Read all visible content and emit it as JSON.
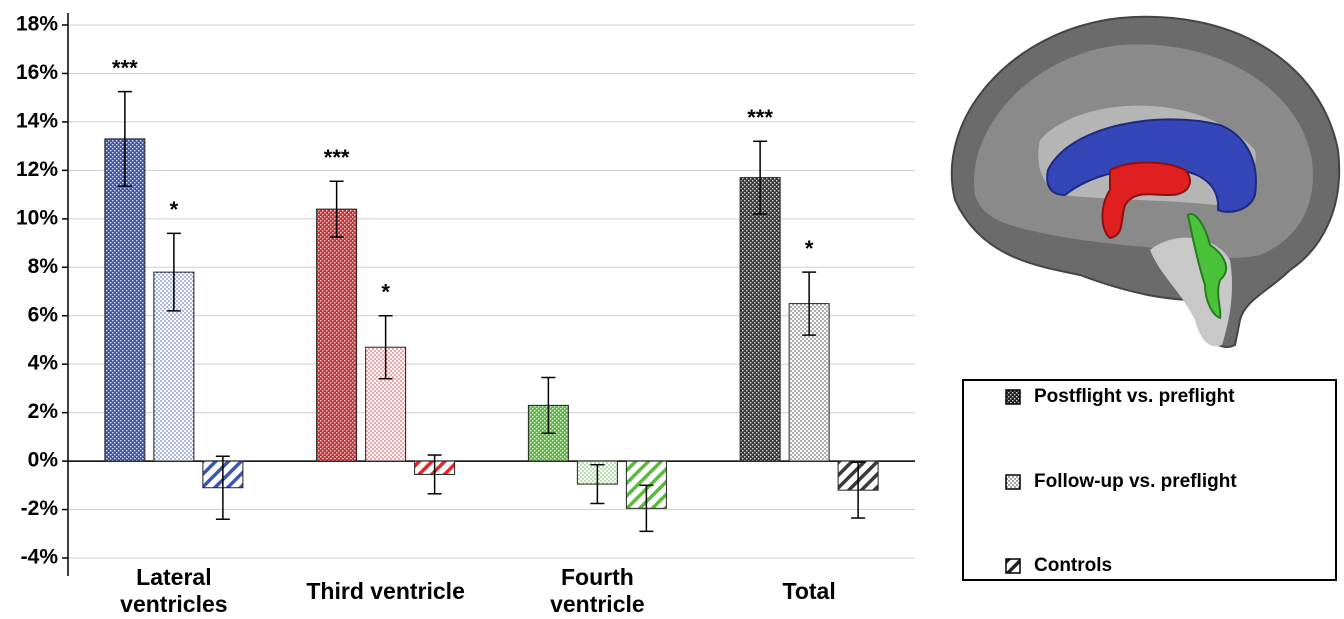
{
  "chart_data": {
    "type": "bar",
    "categories": [
      "Lateral ventricles",
      "Third ventricle",
      "Fourth ventricle",
      "Total"
    ],
    "category_colors": [
      "#3b56b3",
      "#e3262a",
      "#5bbb3b",
      "#3a3a3a"
    ],
    "series": [
      {
        "name": "Postflight vs. preflight",
        "pattern": "dense",
        "values": [
          13.3,
          10.4,
          2.3,
          11.7
        ],
        "errors": [
          1.95,
          1.15,
          1.15,
          1.5
        ],
        "significance": [
          "***",
          "***",
          null,
          "***"
        ]
      },
      {
        "name": "Follow-up vs. preflight",
        "pattern": "dots",
        "values": [
          7.8,
          4.7,
          -0.95,
          6.5
        ],
        "errors": [
          1.6,
          1.3,
          0.8,
          1.3
        ],
        "significance": [
          "*",
          "*",
          null,
          "*"
        ]
      },
      {
        "name": "Controls",
        "pattern": "hatch",
        "values": [
          -1.1,
          -0.55,
          -1.95,
          -1.2
        ],
        "errors": [
          1.3,
          0.8,
          0.95,
          1.15
        ],
        "significance": [
          null,
          null,
          null,
          null
        ]
      }
    ],
    "ylim": [
      -4,
      18
    ],
    "yticks": [
      {
        "value": -4,
        "label": "-4%"
      },
      {
        "value": -2,
        "label": "-2%"
      },
      {
        "value": 0,
        "label": "0%"
      },
      {
        "value": 2,
        "label": "2%"
      },
      {
        "value": 4,
        "label": "4%"
      },
      {
        "value": 6,
        "label": "6%"
      },
      {
        "value": 8,
        "label": "8%"
      },
      {
        "value": 10,
        "label": "10%"
      },
      {
        "value": 12,
        "label": "12%"
      },
      {
        "value": 14,
        "label": "14%"
      },
      {
        "value": 16,
        "label": "16%"
      },
      {
        "value": 18,
        "label": "18%"
      }
    ],
    "grid": true,
    "legend": "right"
  }
}
